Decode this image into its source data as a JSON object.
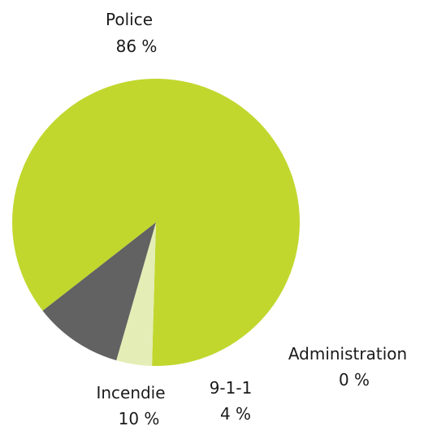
{
  "chart_data": {
    "type": "pie",
    "series": [
      {
        "slices": [
          {
            "label": "Police",
            "value_label": "86 %",
            "value": 86,
            "color": "#c1d72e"
          },
          {
            "label": "Administration",
            "value_label": "0 %",
            "value": 0,
            "color": "#c1d72e"
          },
          {
            "label": "9-1-1",
            "value_label": "4 %",
            "value": 4,
            "color": "#e4edb5"
          },
          {
            "label": "Incendie",
            "value_label": "10 %",
            "value": 10,
            "color": "#626262"
          }
        ]
      }
    ],
    "legend": "none"
  }
}
